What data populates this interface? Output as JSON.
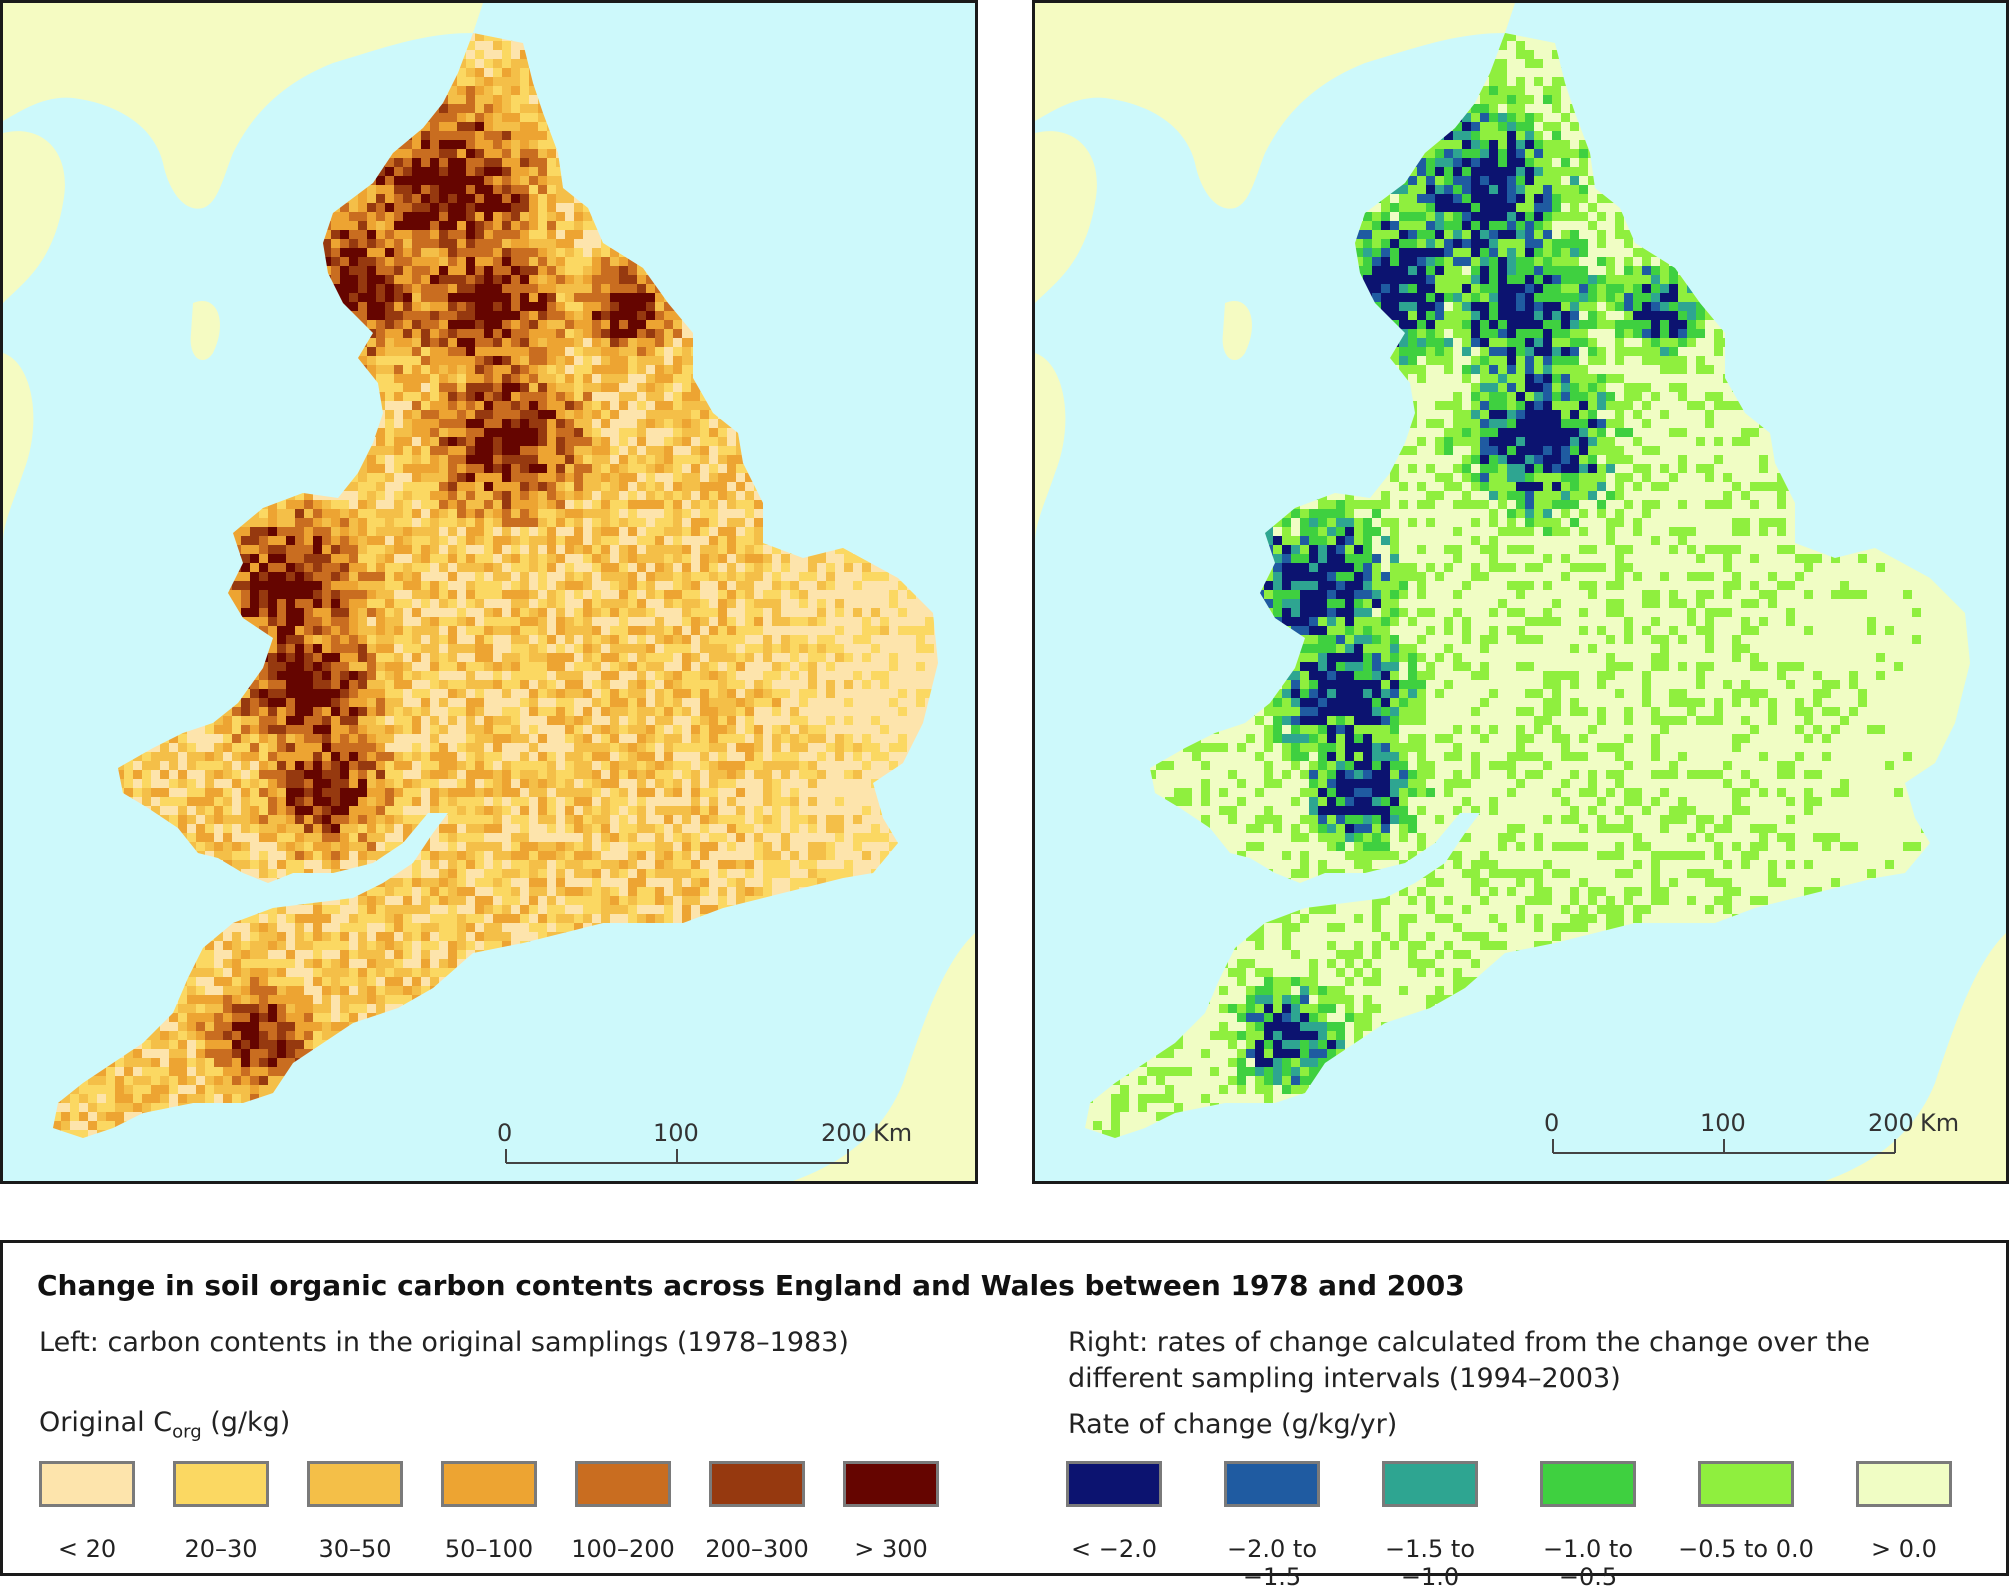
{
  "maps": {
    "left": {
      "scale_bar": {
        "ticks": [
          "0",
          "100",
          "200"
        ],
        "unit": "Km"
      }
    },
    "right": {
      "scale_bar": {
        "ticks": [
          "0",
          "100",
          "200"
        ],
        "unit": "Km"
      }
    }
  },
  "legend": {
    "title": "Change in soil organic carbon contents across England and Wales between 1978 and 2003",
    "left": {
      "description": "Left: carbon contents in the original samplings (1978–1983)",
      "heading": "Original C",
      "heading_sub": "org",
      "heading_unit": " (g/kg)",
      "classes": [
        {
          "label": "< 20",
          "color": "#fde4ac"
        },
        {
          "label": "20–30",
          "color": "#fbd862"
        },
        {
          "label": "30–50",
          "color": "#f4bf48"
        },
        {
          "label": "50–100",
          "color": "#eda432"
        },
        {
          "label": "100–200",
          "color": "#c96d20"
        },
        {
          "label": "200–300",
          "color": "#96390f"
        },
        {
          "label": "> 300",
          "color": "#650500"
        }
      ]
    },
    "right": {
      "description_line1": "Right: rates of change calculated from the change over the",
      "description_line2": "different sampling intervals (1994–2003)",
      "heading": "Rate of change (g/kg/yr)",
      "classes": [
        {
          "label": "< −2.0",
          "color": "#0c1370"
        },
        {
          "label": "−2.0 to −1.5",
          "color": "#1f5ba1"
        },
        {
          "label": "−1.5 to −1.0",
          "color": "#2ea591"
        },
        {
          "label": "−1.0 to −0.5",
          "color": "#3fd040"
        },
        {
          "label": "−0.5 to 0.0",
          "color": "#8fef3e"
        },
        {
          "label": "> 0.0",
          "color": "#f0fdc4"
        }
      ]
    }
  },
  "colors": {
    "sea": "#cdf9fb",
    "land_outside": "#f5fbc2",
    "frame": "#1a1a1a"
  }
}
